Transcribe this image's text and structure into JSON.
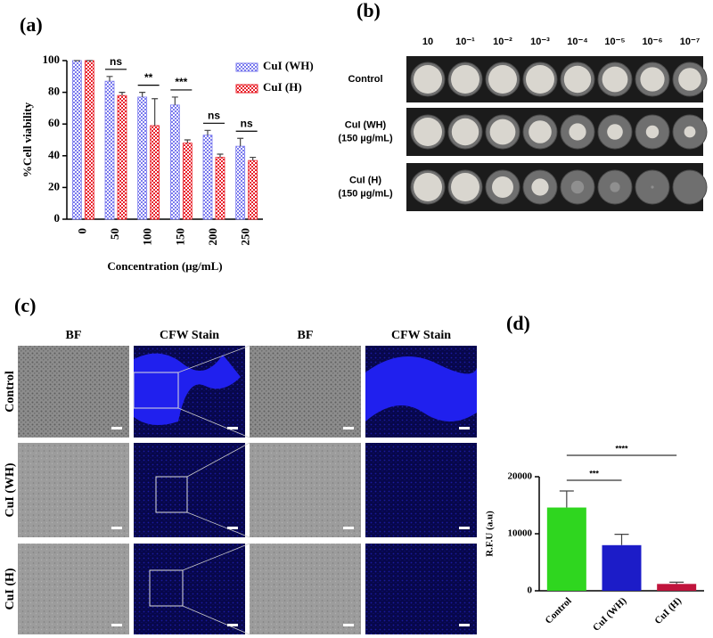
{
  "chart_data": [
    {
      "type": "bar",
      "panel_label": "(a)",
      "xlabel": "Concentration (µg/mL)",
      "ylabel": "%Cell viability",
      "categories": [
        "0",
        "50",
        "100",
        "150",
        "200",
        "250"
      ],
      "series": [
        {
          "name": "CuI (WH)",
          "color": "#7a7aee",
          "values": [
            100,
            87,
            77,
            72,
            53,
            46
          ],
          "errors": [
            0,
            3,
            3,
            5,
            3,
            5
          ]
        },
        {
          "name": "CuI (H)",
          "color": "#e8202a",
          "values": [
            100,
            78,
            59,
            48,
            39,
            37
          ],
          "errors": [
            0,
            2,
            17,
            2,
            2,
            2
          ]
        }
      ],
      "annotations": [
        null,
        "ns",
        "**",
        "***",
        "ns",
        "ns"
      ],
      "ylim": [
        0,
        100
      ],
      "yticks": [
        0,
        20,
        40,
        60,
        80,
        100
      ],
      "grid": false,
      "legend": "upper right"
    },
    {
      "type": "bar",
      "panel_label": "(d)",
      "ylabel": "R.F.U (a.u)",
      "categories": [
        "Control",
        "CuI (WH)",
        "CuI (H)"
      ],
      "values": [
        14600,
        8000,
        1200
      ],
      "errors": [
        2900,
        1900,
        300
      ],
      "colors": [
        "#2fd61f",
        "#1c1cc8",
        "#c0143c"
      ],
      "annotations": [
        {
          "pair": [
            0,
            1
          ],
          "label": "***"
        },
        {
          "pair": [
            0,
            2
          ],
          "label": "****"
        }
      ],
      "ylim": [
        0,
        20000
      ],
      "yticks": [
        0,
        10000,
        20000
      ],
      "grid": false
    }
  ],
  "panel_b": {
    "label": "(b)",
    "dilutions": [
      "10",
      "10⁻¹",
      "10⁻²",
      "10⁻³",
      "10⁻⁴",
      "10⁻⁵",
      "10⁻⁶",
      "10⁻⁷"
    ],
    "rows": [
      [
        "Control"
      ],
      [
        "CuI (WH)",
        "(150 µg/mL)"
      ],
      [
        "CuI (H)",
        "(150 µg/mL)"
      ]
    ]
  },
  "panel_c": {
    "label": "(c)",
    "columns": [
      "BF",
      "CFW Stain",
      "BF",
      "CFW Stain"
    ],
    "rows": [
      "Control",
      "CuI (WH)",
      "CuI (H)"
    ]
  }
}
